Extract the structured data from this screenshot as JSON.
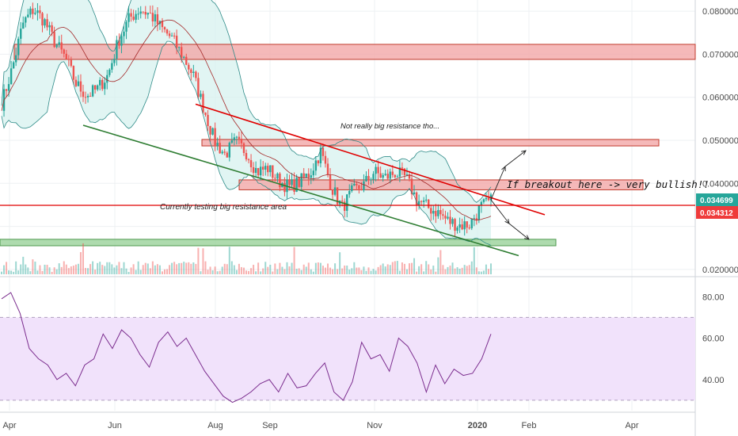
{
  "colors": {
    "up": "#26a69a",
    "down": "#ef5350",
    "bb_line": "#2e8b88",
    "bb_fill": "#d7f1ef",
    "ma": "#a52a2a",
    "resistance_zone": "#f2a7a7",
    "support_zone": "#9ad29a",
    "trend_red": "#e00000",
    "trend_green": "#2e7d32",
    "rsi_line": "#7b2d8e",
    "rsi_band": "#f1e2fb",
    "price_label_green": "#26a69a",
    "price_label_red": "#ef3b3b"
  },
  "chart_data": [
    {
      "type": "candlestick",
      "x_tick_labels": [
        "Apr",
        "Jun",
        "Aug",
        "Sep",
        "Nov",
        "2020",
        "Feb",
        "Apr"
      ],
      "y_tick_labels": [
        "0.080000",
        "0.070000",
        "0.060000",
        "0.050000",
        "0.040000",
        "0.020000"
      ],
      "ylim": [
        0.0185,
        0.0815
      ],
      "current_price_labels": [
        "0.034699",
        "0.034312"
      ],
      "zones": [
        {
          "kind": "resistance",
          "y_low": 0.0688,
          "y_high": 0.0723
        },
        {
          "kind": "resistance",
          "y_low": 0.0487,
          "y_high": 0.0502
        },
        {
          "kind": "resistance",
          "y_low": 0.0385,
          "y_high": 0.0408
        },
        {
          "kind": "support",
          "y_low": 0.0255,
          "y_high": 0.027
        }
      ],
      "horizontal_line": 0.0349,
      "trendlines": [
        {
          "kind": "resistance",
          "from": [
            "Jul 20",
            0.0584
          ],
          "to": [
            "Jan 20",
            0.0327
          ]
        },
        {
          "kind": "support",
          "from": [
            "Apr 25",
            0.0535
          ],
          "to": [
            "Jan 28",
            0.0232
          ]
        }
      ],
      "annotations": [
        "Not really big resistance tho...",
        "If breakout here -> very bullish!!",
        "Currently testing big resistance area"
      ],
      "series": [
        {
          "values": [
            0.0586,
            0.0667,
            0.0771,
            0.0805,
            0.0778,
            0.0728,
            0.0691,
            0.0631,
            0.0604,
            0.0619,
            0.0652,
            0.0733,
            0.0783,
            0.0805,
            0.0792,
            0.0761,
            0.0737,
            0.0697,
            0.0652,
            0.0575,
            0.0499,
            0.0467,
            0.0497,
            0.0473,
            0.0427,
            0.0436,
            0.0407,
            0.0391,
            0.0403,
            0.0424,
            0.0474,
            0.0393,
            0.0343,
            0.0381,
            0.0395,
            0.0427,
            0.0413,
            0.0425,
            0.0413,
            0.0363,
            0.0345,
            0.0333,
            0.0312,
            0.0303,
            0.0305,
            0.0344,
            0.0358
          ]
        }
      ]
    },
    {
      "type": "line",
      "y_tick_labels": [
        "80.00",
        "60.00",
        "40.00"
      ],
      "ylim": [
        25,
        87
      ],
      "band": [
        30,
        70
      ],
      "series": [
        {
          "values": [
            79,
            82,
            72,
            55,
            50,
            47,
            40,
            43,
            37,
            47,
            50,
            62,
            55,
            64,
            60,
            52,
            46,
            58,
            63,
            56,
            60,
            52,
            44,
            38,
            32,
            29,
            31,
            34,
            38,
            40,
            34,
            43,
            36,
            37,
            43,
            48,
            34,
            30,
            39,
            58,
            50,
            52,
            44,
            60,
            56,
            48,
            34,
            47,
            38,
            45,
            42,
            43,
            50,
            62
          ]
        }
      ]
    }
  ]
}
